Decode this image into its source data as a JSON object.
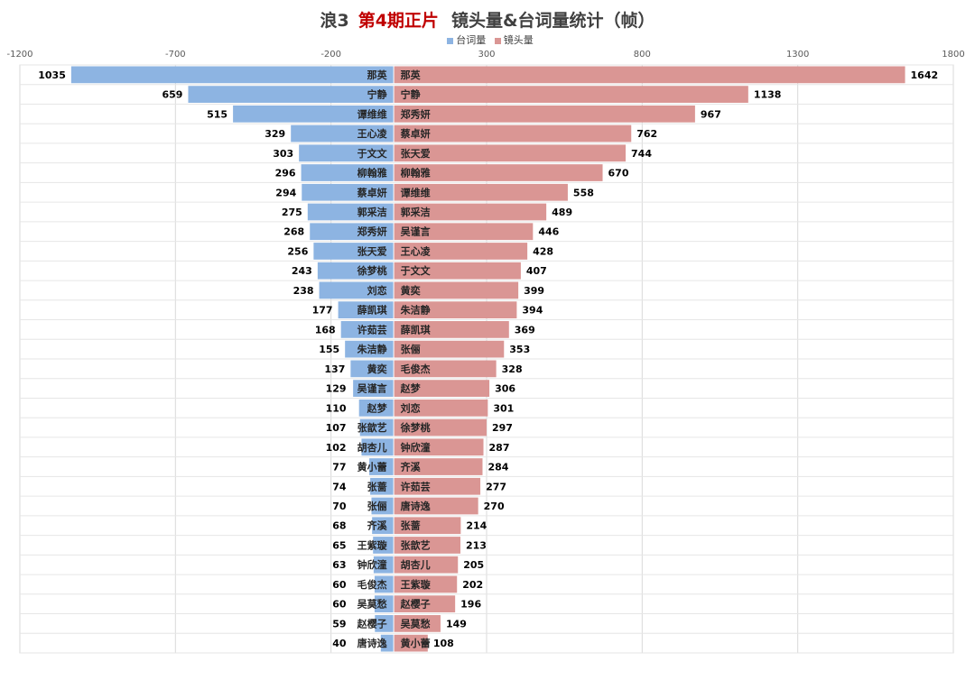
{
  "chart_data": {
    "type": "bar",
    "orientation": "horizontal-diverging",
    "title": {
      "prefix": "浪3",
      "highlight": "第4期正片",
      "main": "镜头量&台词量统计（帧）"
    },
    "xlim": [
      -1200,
      1800
    ],
    "xticks": [
      "-1200",
      "-700",
      "-200",
      "300",
      "800",
      "1300",
      "1800"
    ],
    "xtick_values": [
      -1200,
      -700,
      -200,
      300,
      800,
      1300,
      1800
    ],
    "grid": true,
    "legend_position": "top",
    "colors": {
      "lines": "#8db4e2",
      "shots": "#da9694",
      "title_highlight": "#c00000"
    },
    "series": [
      {
        "name": "台词量",
        "direction": "left",
        "categories": [
          "那英",
          "宁静",
          "谭维维",
          "王心凌",
          "于文文",
          "柳翰雅",
          "蔡卓妍",
          "郭采洁",
          "郑秀妍",
          "张天爱",
          "徐梦桃",
          "刘恋",
          "薛凯琪",
          "许茹芸",
          "朱洁静",
          "黄奕",
          "吴谨言",
          "赵梦",
          "张歆艺",
          "胡杏儿",
          "黄小蕾",
          "张蔷",
          "张俪",
          "齐溪",
          "王紫璇",
          "钟欣潼",
          "毛俊杰",
          "吴莫愁",
          "赵樱子",
          "唐诗逸"
        ],
        "values": [
          1035,
          659,
          515,
          329,
          303,
          296,
          294,
          275,
          268,
          256,
          243,
          238,
          177,
          168,
          155,
          137,
          129,
          110,
          107,
          102,
          77,
          74,
          70,
          68,
          65,
          63,
          60,
          60,
          59,
          40
        ]
      },
      {
        "name": "镜头量",
        "direction": "right",
        "categories": [
          "那英",
          "宁静",
          "郑秀妍",
          "蔡卓妍",
          "张天爱",
          "柳翰雅",
          "谭维维",
          "郭采洁",
          "吴谨言",
          "王心凌",
          "于文文",
          "黄奕",
          "朱洁静",
          "薛凯琪",
          "张俪",
          "毛俊杰",
          "赵梦",
          "刘恋",
          "徐梦桃",
          "钟欣潼",
          "齐溪",
          "许茹芸",
          "唐诗逸",
          "张蔷",
          "张歆艺",
          "胡杏儿",
          "王紫璇",
          "赵樱子",
          "吴莫愁",
          "黄小蕾"
        ],
        "values": [
          1642,
          1138,
          967,
          762,
          744,
          670,
          558,
          489,
          446,
          428,
          407,
          399,
          394,
          369,
          353,
          328,
          306,
          301,
          297,
          287,
          284,
          277,
          270,
          214,
          213,
          205,
          202,
          196,
          149,
          108
        ]
      }
    ]
  }
}
